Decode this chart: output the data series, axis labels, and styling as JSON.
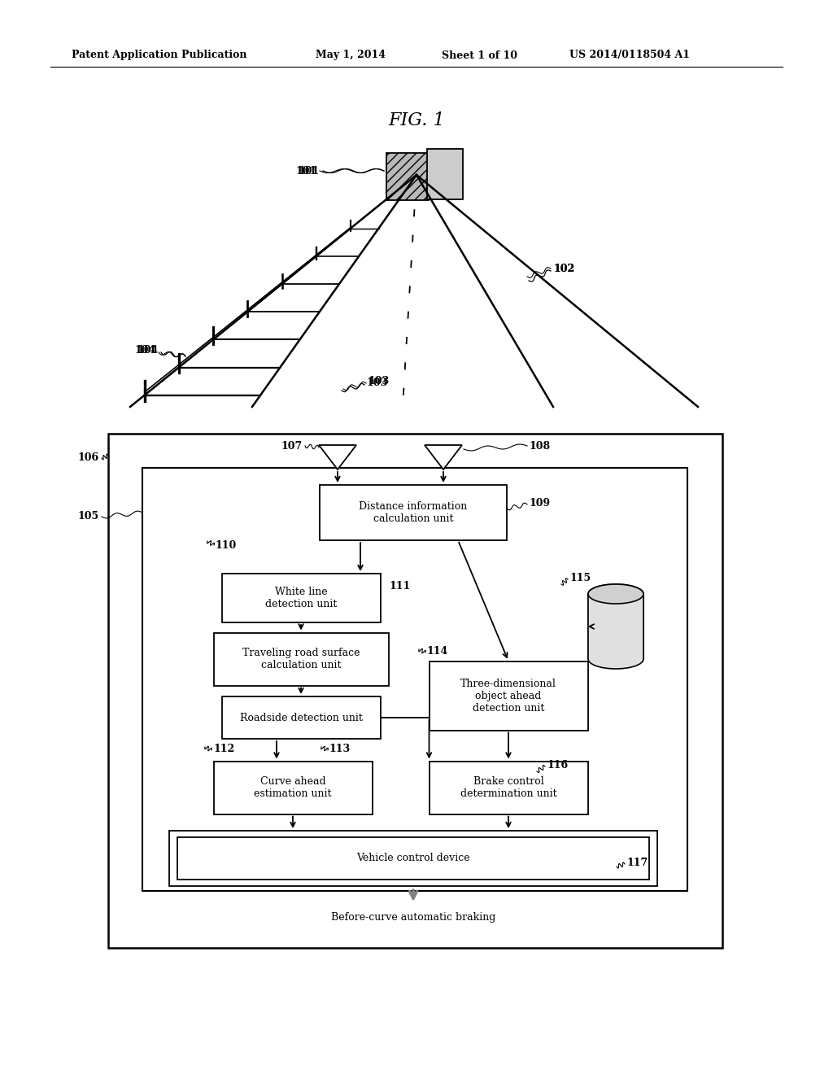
{
  "bg_color": "#ffffff",
  "header_text": "Patent Application Publication",
  "header_date": "May 1, 2014",
  "header_sheet": "Sheet 1 of 10",
  "header_patent": "US 2014/0118504 A1",
  "fig_title": "FIG. 1"
}
